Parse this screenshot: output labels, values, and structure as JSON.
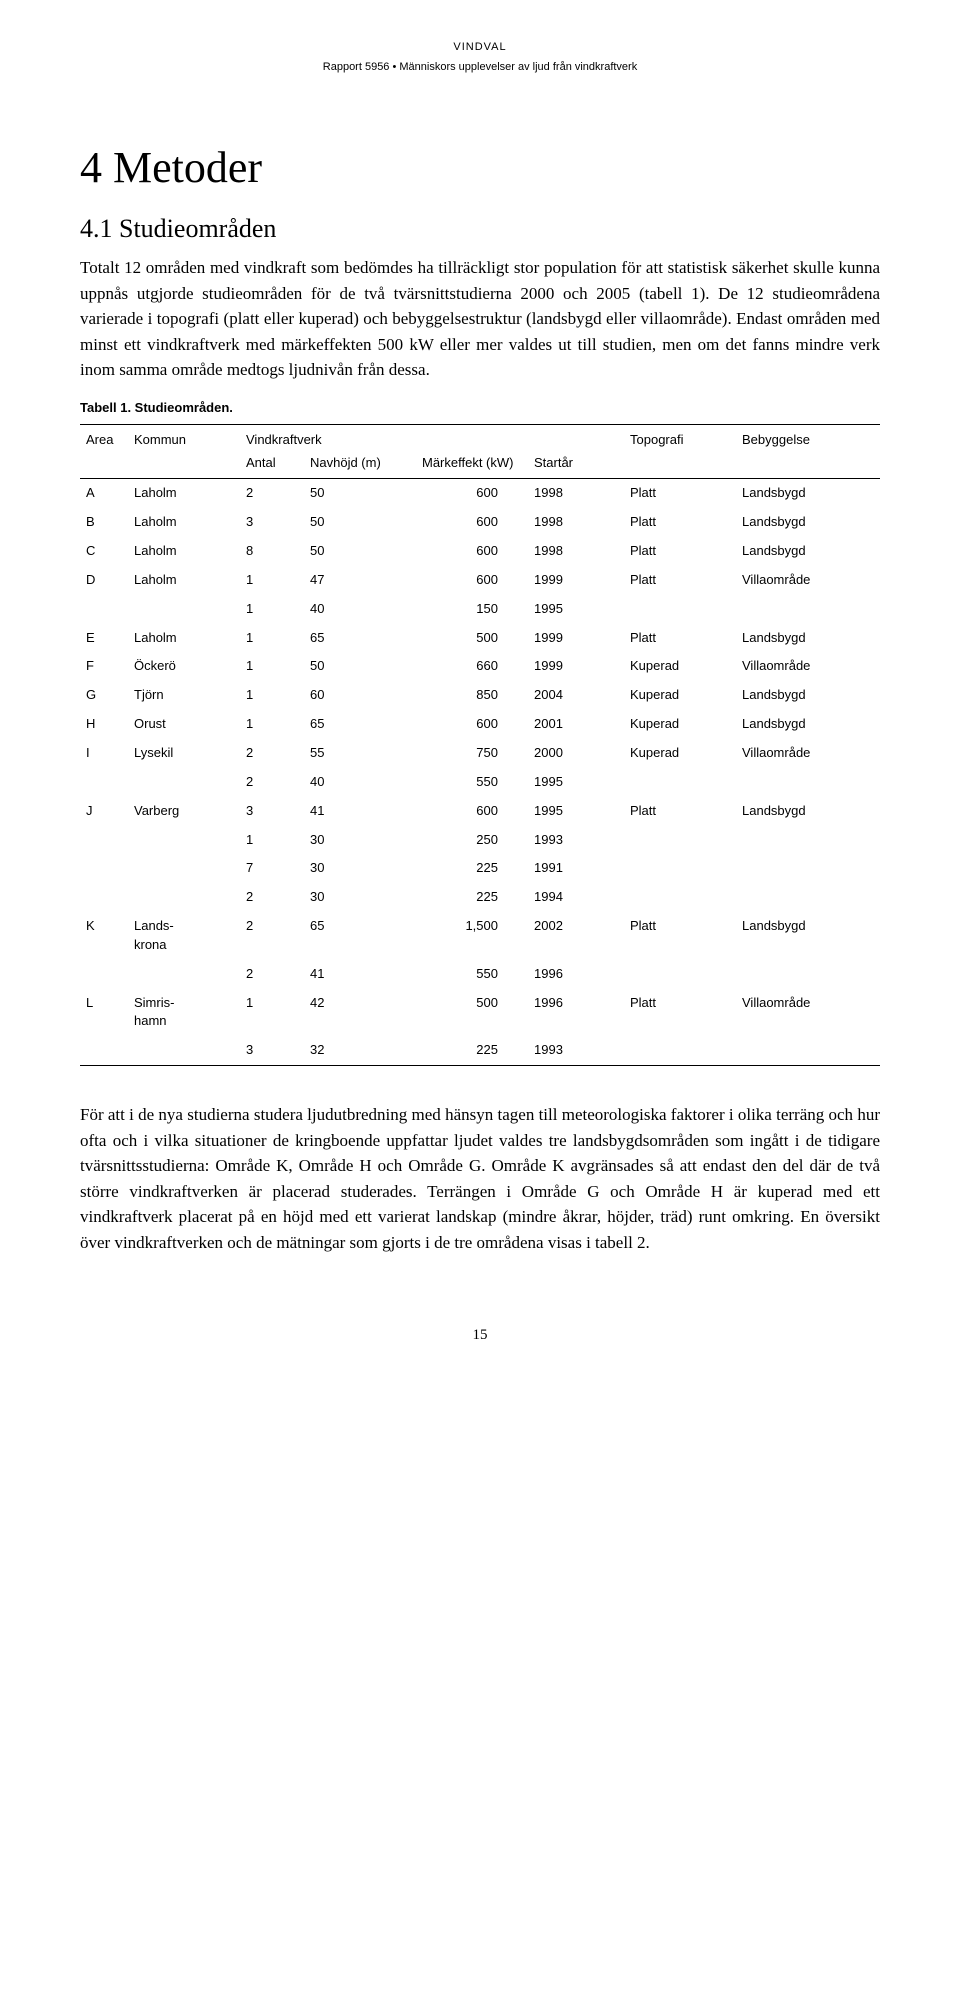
{
  "header_small": "VINDVAL",
  "header_line": "Rapport 5956 • Människors upplevelser av ljud från vindkraftverk",
  "chapter_title": "4 Metoder",
  "section_title": "4.1 Studieområden",
  "para1": "Totalt 12 områden med vindkraft som bedömdes ha tillräckligt stor population för att statistisk säkerhet skulle kunna uppnås utgjorde studieområden för de två tvärsnittstudierna 2000 och 2005 (tabell 1). De 12 studieområdena varierade i topografi (platt eller kuperad) och bebyggelsestruktur (landsbygd eller villaområde). Endast områden med minst ett vindkraftverk med märkeffekten 500 kW eller mer valdes ut till studien, men om det fanns mindre verk inom samma område medtogs ljudnivån från dessa.",
  "table_caption": "Tabell 1. Studieområden.",
  "columns": {
    "area": "Area",
    "kommun": "Kommun",
    "vindkraftverk": "Vindkraftverk",
    "antal": "Antal",
    "navhojd": "Navhöjd (m)",
    "markeffekt": "Märkeffekt (kW)",
    "startar": "Startår",
    "topografi": "Topografi",
    "bebyggelse": "Bebyggelse"
  },
  "rows": [
    {
      "area": "A",
      "kommun": "Laholm",
      "antal": "2",
      "nav": "50",
      "mark": "600",
      "start": "1998",
      "topo": "Platt",
      "beb": "Landsbygd"
    },
    {
      "area": "B",
      "kommun": "Laholm",
      "antal": "3",
      "nav": "50",
      "mark": "600",
      "start": "1998",
      "topo": "Platt",
      "beb": "Landsbygd"
    },
    {
      "area": "C",
      "kommun": "Laholm",
      "antal": "8",
      "nav": "50",
      "mark": "600",
      "start": "1998",
      "topo": "Platt",
      "beb": "Landsbygd"
    },
    {
      "area": "D",
      "kommun": "Laholm",
      "antal": "1",
      "nav": "47",
      "mark": "600",
      "start": "1999",
      "topo": "Platt",
      "beb": "Villaområde"
    },
    {
      "area": "",
      "kommun": "",
      "antal": "1",
      "nav": "40",
      "mark": "150",
      "start": "1995",
      "topo": "",
      "beb": ""
    },
    {
      "area": "E",
      "kommun": "Laholm",
      "antal": "1",
      "nav": "65",
      "mark": "500",
      "start": "1999",
      "topo": "Platt",
      "beb": "Landsbygd"
    },
    {
      "area": "F",
      "kommun": "Öckerö",
      "antal": "1",
      "nav": "50",
      "mark": "660",
      "start": "1999",
      "topo": "Kuperad",
      "beb": "Villaområde"
    },
    {
      "area": "G",
      "kommun": "Tjörn",
      "antal": "1",
      "nav": "60",
      "mark": "850",
      "start": "2004",
      "topo": "Kuperad",
      "beb": "Landsbygd"
    },
    {
      "area": "H",
      "kommun": "Orust",
      "antal": "1",
      "nav": "65",
      "mark": "600",
      "start": "2001",
      "topo": "Kuperad",
      "beb": "Landsbygd"
    },
    {
      "area": "I",
      "kommun": "Lysekil",
      "antal": "2",
      "nav": "55",
      "mark": "750",
      "start": "2000",
      "topo": "Kuperad",
      "beb": "Villaområde"
    },
    {
      "area": "",
      "kommun": "",
      "antal": "2",
      "nav": "40",
      "mark": "550",
      "start": "1995",
      "topo": "",
      "beb": ""
    },
    {
      "area": "J",
      "kommun": "Varberg",
      "antal": "3",
      "nav": "41",
      "mark": "600",
      "start": "1995",
      "topo": "Platt",
      "beb": "Landsbygd"
    },
    {
      "area": "",
      "kommun": "",
      "antal": "1",
      "nav": "30",
      "mark": "250",
      "start": "1993",
      "topo": "",
      "beb": ""
    },
    {
      "area": "",
      "kommun": "",
      "antal": "7",
      "nav": "30",
      "mark": "225",
      "start": "1991",
      "topo": "",
      "beb": ""
    },
    {
      "area": "",
      "kommun": "",
      "antal": "2",
      "nav": "30",
      "mark": "225",
      "start": "1994",
      "topo": "",
      "beb": ""
    },
    {
      "area": "K",
      "kommun": "Lands-krona",
      "antal": "2",
      "nav": "65",
      "mark": "1,500",
      "start": "2002",
      "topo": "Platt",
      "beb": "Landsbygd"
    },
    {
      "area": "",
      "kommun": "",
      "antal": "2",
      "nav": "41",
      "mark": "550",
      "start": "1996",
      "topo": "",
      "beb": ""
    },
    {
      "area": "L",
      "kommun": "Simris-hamn",
      "antal": "1",
      "nav": "42",
      "mark": "500",
      "start": "1996",
      "topo": "Platt",
      "beb": "Villaområde"
    },
    {
      "area": "",
      "kommun": "",
      "antal": "3",
      "nav": "32",
      "mark": "225",
      "start": "1993",
      "topo": "",
      "beb": ""
    }
  ],
  "para2": "För att i de nya studierna studera ljudutbredning med hänsyn tagen till meteorologiska faktorer i olika terräng och hur ofta och i vilka situationer de kringboende uppfattar ljudet valdes tre landsbygdsområden som ingått i de tidigare tvärsnittsstudierna: Område K, Område H och Område G. Område K avgränsades så att endast den del där de två större vindkraftverken är placerad studerades. Terrängen i Område G och Område H är kuperad med ett vindkraftverk placerat på en höjd med ett varierat landskap (mindre åkrar, höjder, träd) runt omkring. En översikt över vindkraftverken och de mätningar som gjorts i de tre områdena visas i tabell 2.",
  "page_number": "15"
}
